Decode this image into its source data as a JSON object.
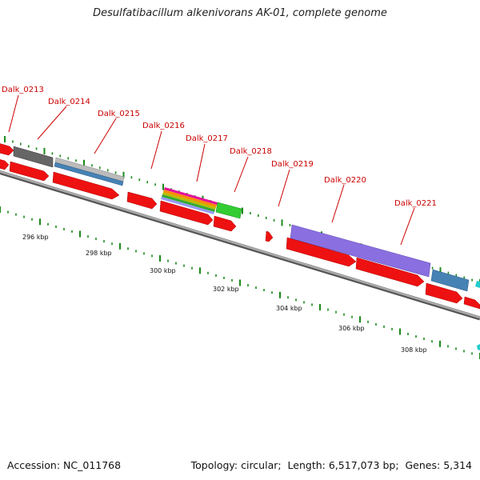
{
  "title": "Desulfatibacillum alkenivorans AK-01, complete genome",
  "footer": {
    "accession_label": "Accession:",
    "accession": "NC_011768",
    "topology_label": "Topology:",
    "topology": "circular",
    "length_label": "Length:",
    "length": "6,517,073 bp",
    "genes_label": "Genes:",
    "genes": "5,314"
  },
  "gene_labels": [
    "Dalk_0213",
    "Dalk_0214",
    "Dalk_0215",
    "Dalk_0216",
    "Dalk_0217",
    "Dalk_0218",
    "Dalk_0219",
    "Dalk_0220",
    "Dalk_0221"
  ],
  "position_labels": [
    "296 kbp",
    "298 kbp",
    "300 kbp",
    "302 kbp",
    "304 kbp",
    "306 kbp",
    "308 kbp"
  ],
  "colors": {
    "gene_cds": "#ee1111",
    "gene_label": "#cc0000",
    "backbone": "#888888",
    "tick": "#1a8a1a",
    "feature_gray": "#666666",
    "feature_lightgray": "#bbbbbb",
    "feature_blue": "#4682b4",
    "feature_purple": "#8a6fe0",
    "feature_green": "#33cc33",
    "feature_magenta": "#e0109a",
    "feature_cyan": "#22cccc"
  }
}
